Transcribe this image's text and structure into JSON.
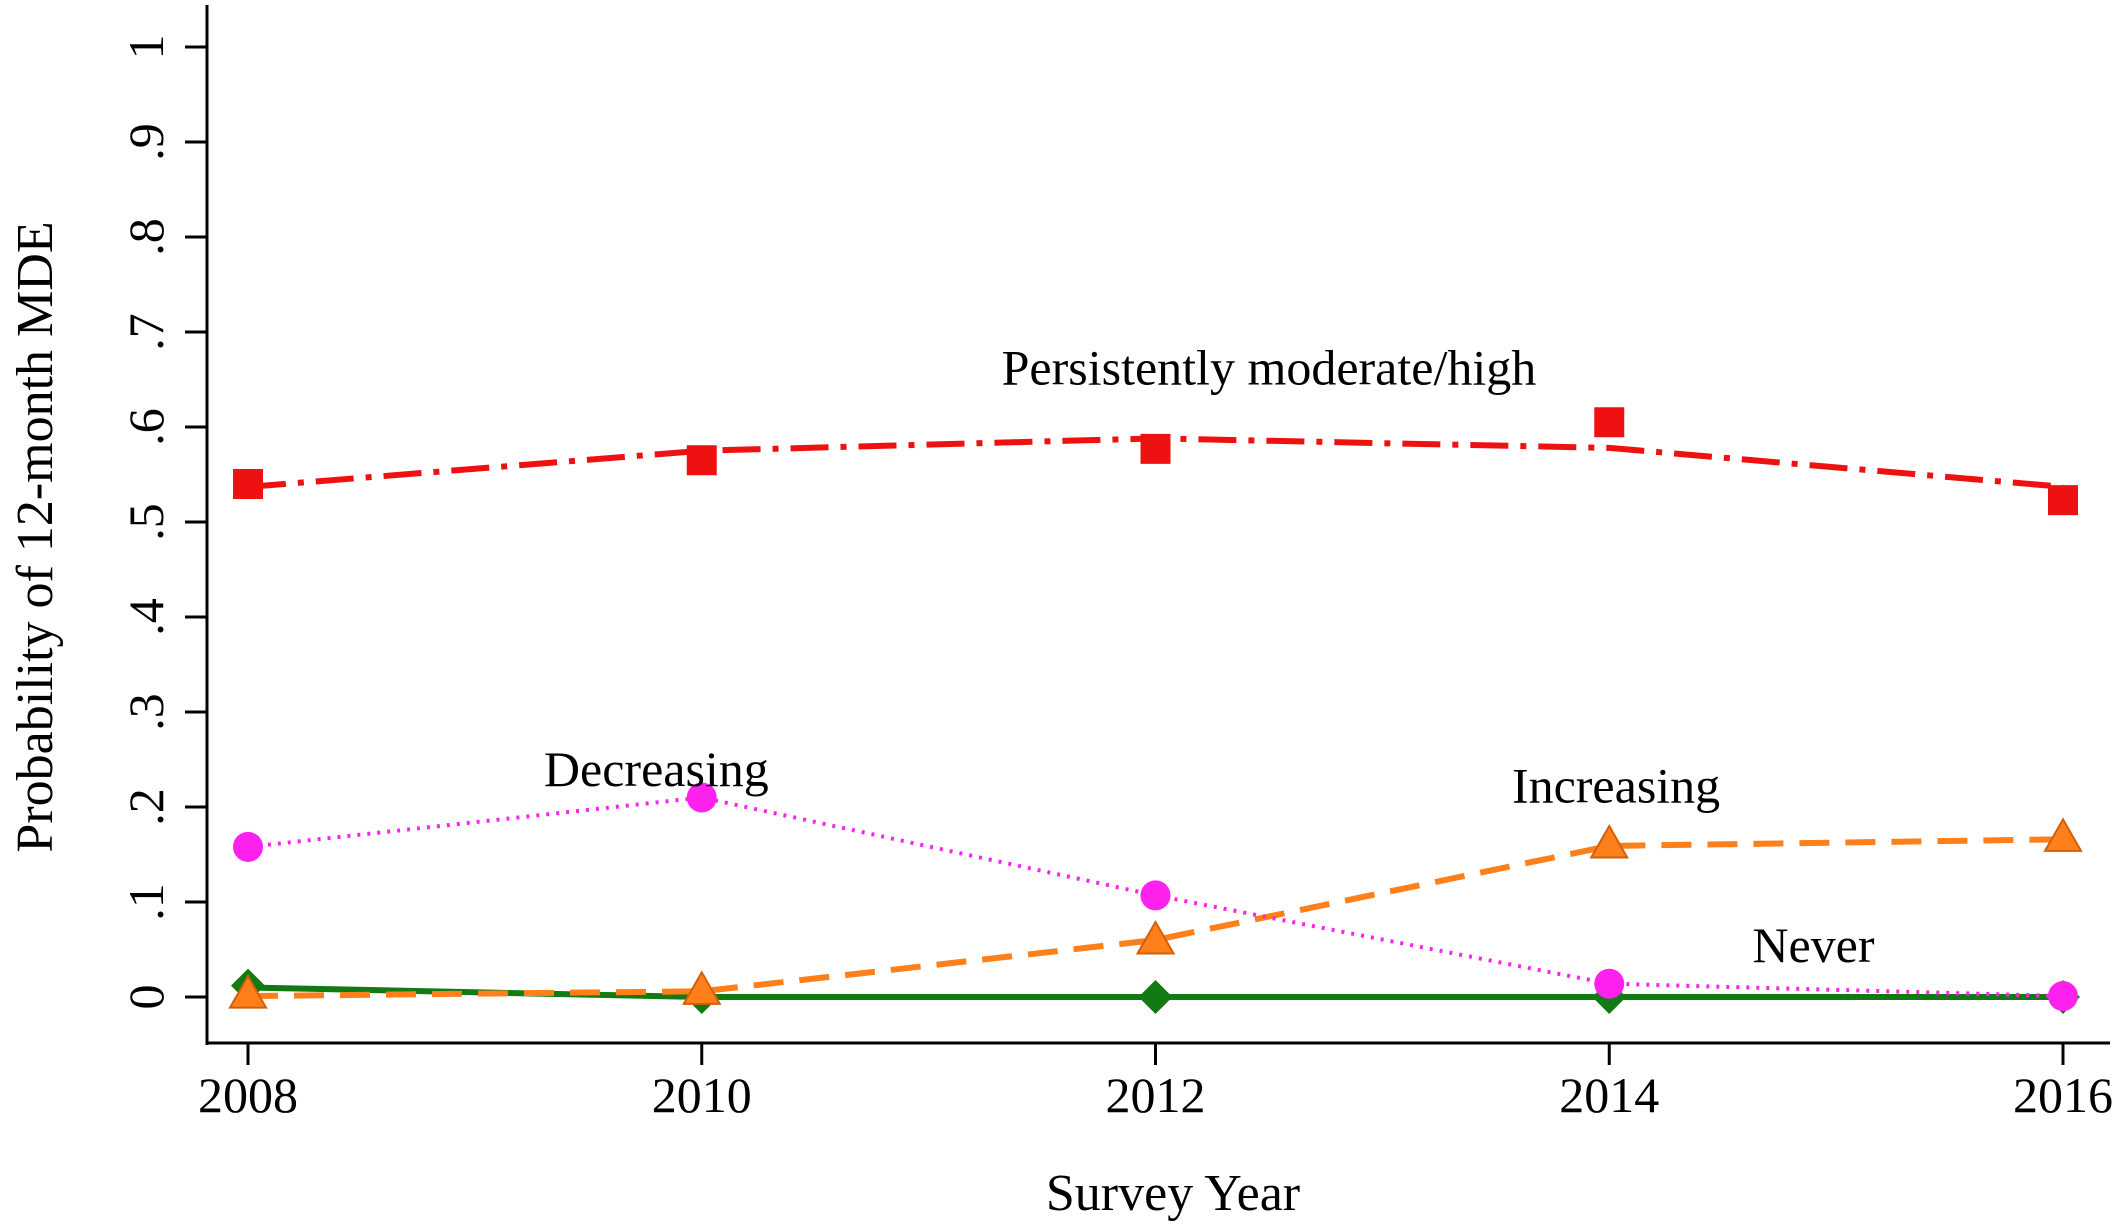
{
  "chart_data": {
    "type": "line",
    "xlabel": "Survey Year",
    "ylabel": "Probability of 12-month MDE",
    "x": [
      2008,
      2010,
      2012,
      2014,
      2016
    ],
    "xlim": [
      2008,
      2016
    ],
    "ylim": [
      0,
      1
    ],
    "x_ticks": [
      "2008",
      "2010",
      "2012",
      "2014",
      "2016"
    ],
    "y_ticks": [
      {
        "value": 0,
        "label": "0"
      },
      {
        "value": 0.1,
        "label": ".1"
      },
      {
        "value": 0.2,
        "label": ".2"
      },
      {
        "value": 0.3,
        "label": ".3"
      },
      {
        "value": 0.4,
        "label": ".4"
      },
      {
        "value": 0.5,
        "label": ".5"
      },
      {
        "value": 0.6,
        "label": ".6"
      },
      {
        "value": 0.7,
        "label": ".7"
      },
      {
        "value": 0.8,
        "label": ".8"
      },
      {
        "value": 0.9,
        "label": ".9"
      },
      {
        "value": 1,
        "label": "1"
      }
    ],
    "grid": false,
    "series": [
      {
        "name": "Persistently moderate/high",
        "color": "#ee1111",
        "marker": "square",
        "line_style": "dash-dot",
        "observed": [
          0.54,
          0.565,
          0.577,
          0.605,
          0.523
        ],
        "fitted": [
          0.537,
          0.575,
          0.588,
          0.578,
          0.537
        ]
      },
      {
        "name": "Decreasing",
        "color": "#ff22ee",
        "marker": "circle",
        "line_style": "dotted",
        "observed": [
          0.158,
          0.21,
          0.107,
          0.014,
          0.001
        ],
        "fitted": [
          0.158,
          0.21,
          0.107,
          0.014,
          0.001
        ]
      },
      {
        "name": "Increasing",
        "color": "#ff7f1a",
        "marker": "triangle",
        "line_style": "dashed",
        "observed": [
          0.003,
          0.007,
          0.06,
          0.161,
          0.168
        ],
        "fitted": [
          0.001,
          0.006,
          0.06,
          0.159,
          0.166
        ]
      },
      {
        "name": "Never",
        "color": "#127a12",
        "marker": "diamond",
        "line_style": "solid",
        "observed": [
          0.012,
          0.0,
          0.0,
          0.0,
          0.0
        ],
        "fitted": [
          0.01,
          0.0,
          0.0,
          0.0,
          0.0
        ]
      }
    ],
    "annotations": [
      {
        "text": "Persistently moderate/high",
        "x": 2012.5,
        "y": 0.645
      },
      {
        "text": "Decreasing",
        "x": 2009.8,
        "y": 0.222
      },
      {
        "text": "Increasing",
        "x": 2014.03,
        "y": 0.205
      },
      {
        "text": "Never",
        "x": 2014.9,
        "y": 0.037
      }
    ]
  }
}
